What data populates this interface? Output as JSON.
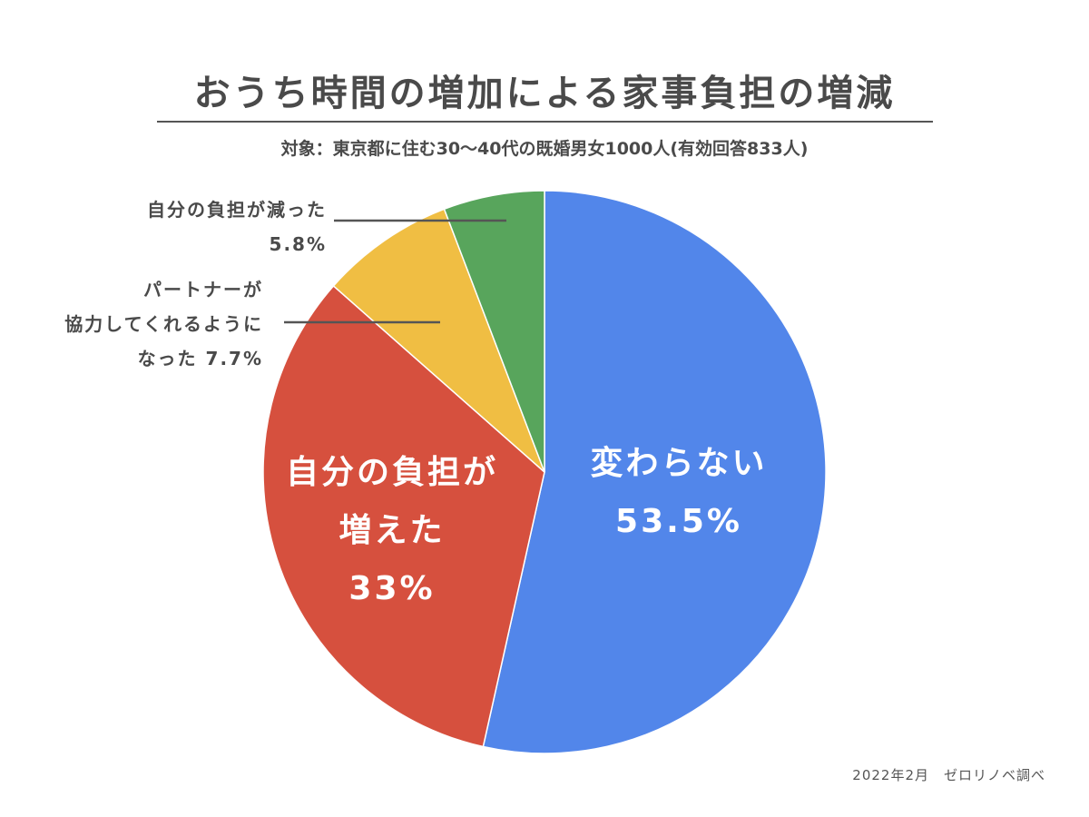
{
  "header": {
    "title": "おうち時間の増加による家事負担の増減",
    "subtitle": "対象：東京都に住む30〜40代の既婚男女1000人(有効回答833人)"
  },
  "footer": {
    "source": "2022年2月　ゼロリノベ調べ"
  },
  "chart_data": {
    "type": "pie",
    "title": "おうち時間の増加による家事負担の増減",
    "start": "12 o'clock",
    "direction": "clockwise",
    "slices": [
      {
        "name": "変わらない",
        "value": 53.5,
        "value_label": "53.5%",
        "color": "#5286ea",
        "label_lines": [
          "変わらない"
        ],
        "label_pos": "inside"
      },
      {
        "name": "自分の負担が増えた",
        "value": 33,
        "value_label": "33%",
        "color": "#d6503e",
        "label_lines": [
          "自分の負担が",
          "増えた"
        ],
        "label_pos": "inside"
      },
      {
        "name": "パートナーが協力してくれるようになった",
        "value": 7.7,
        "value_label": "7.7%",
        "color": "#f0be43",
        "label_lines": [
          "パートナーが",
          "協力してくれるように",
          "なった"
        ],
        "label_pos": "outside-left"
      },
      {
        "name": "自分の負担が減った",
        "value": 5.8,
        "value_label": "5.8%",
        "color": "#58a55c",
        "label_lines": [
          "自分の負担が減った"
        ],
        "label_pos": "outside-left"
      }
    ]
  }
}
